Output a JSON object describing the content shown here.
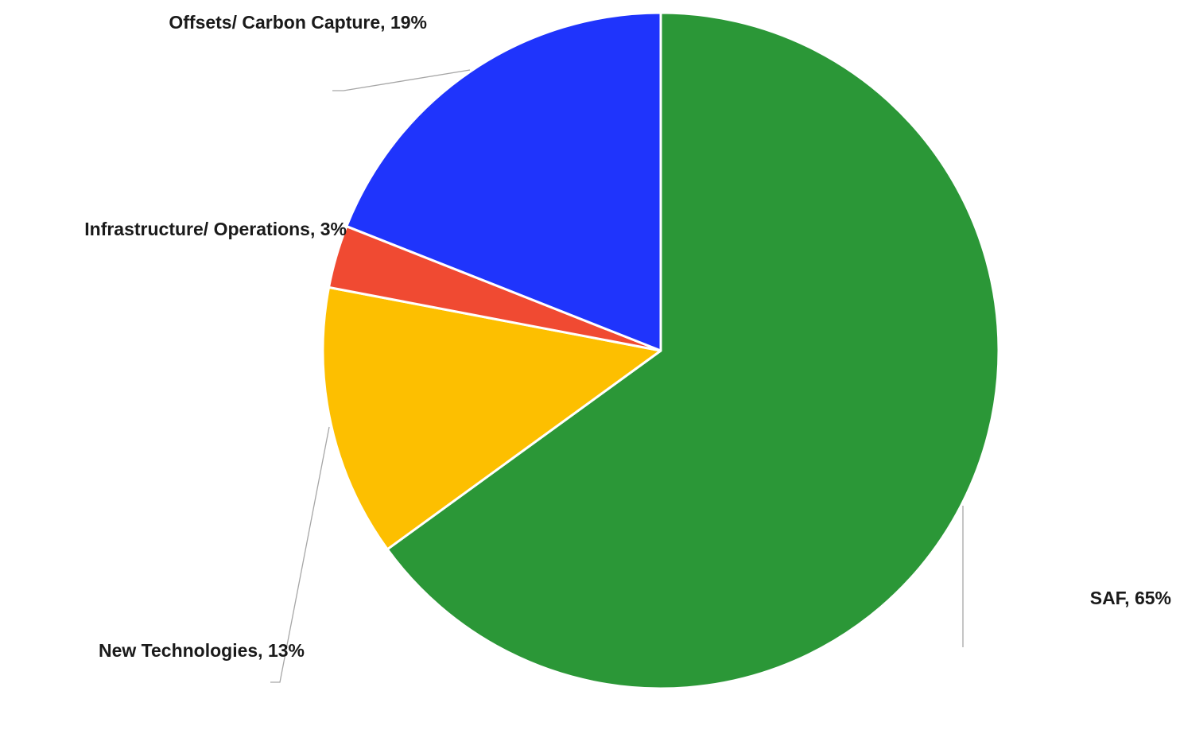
{
  "chart_data": {
    "type": "pie",
    "title": "",
    "slices": [
      {
        "label": "SAF",
        "value": 65,
        "data_label": "SAF, 65%",
        "color": "#2b9737"
      },
      {
        "label": "New Technologies",
        "value": 13,
        "data_label": "New Technologies, 13%",
        "color": "#fdbf00"
      },
      {
        "label": "Infrastructure/ Operations",
        "value": 3,
        "data_label": "Infrastructure/ Operations, 3%",
        "color": "#f04a32"
      },
      {
        "label": "Offsets/ Carbon Capture",
        "value": 19,
        "data_label": "Offsets/ Carbon Capture, 19%",
        "color": "#1f34fc"
      }
    ],
    "start_angle": "12 o'clock",
    "direction": "clockwise",
    "legend": "none",
    "data_labels": "outside with leader lines"
  }
}
